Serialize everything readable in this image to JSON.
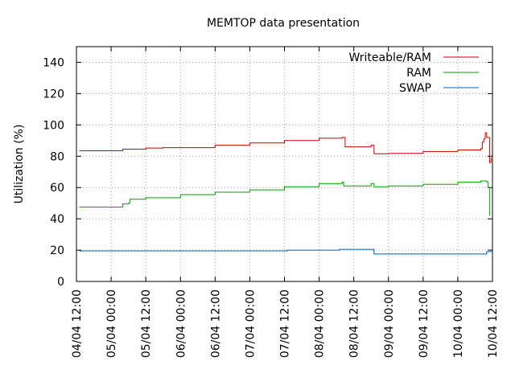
{
  "chart_data": {
    "type": "line",
    "title": "MEMTOP data presentation",
    "xlabel": "",
    "ylabel": "Utilization (%)",
    "ylim": [
      0,
      150
    ],
    "y_ticks": [
      0,
      20,
      40,
      60,
      80,
      100,
      120,
      140
    ],
    "x_ticks": [
      "04/04 12:00",
      "05/04 00:00",
      "05/04 12:00",
      "06/04 00:00",
      "06/04 12:00",
      "07/04 00:00",
      "07/04 12:00",
      "08/04 00:00",
      "08/04 12:00",
      "09/04 00:00",
      "09/04 12:00",
      "10/04 00:00",
      "10/04 12:00"
    ],
    "grid": true,
    "legend_position": "top-right",
    "colors": {
      "Writeable/RAM": "#cc0000",
      "RAM": "#00a000",
      "SWAP": "#0060c0"
    },
    "series": [
      {
        "name": "Writeable/RAM",
        "points": [
          [
            "04/04 13:00",
            83.5
          ],
          [
            "04/04 14:00",
            83.5
          ],
          [
            "05/04 04:00",
            84.5
          ],
          [
            "05/04 12:00",
            85.2
          ],
          [
            "05/04 18:00",
            85.5
          ],
          [
            "06/04 12:00",
            87.0
          ],
          [
            "07/04 00:00",
            88.5
          ],
          [
            "07/04 12:00",
            90.0
          ],
          [
            "08/04 00:00",
            91.5
          ],
          [
            "08/04 08:00",
            92.0
          ],
          [
            "08/04 09:00",
            86.0
          ],
          [
            "08/04 18:00",
            87.0
          ],
          [
            "08/04 19:00",
            81.5
          ],
          [
            "09/04 00:00",
            81.8
          ],
          [
            "09/04 12:00",
            83.0
          ],
          [
            "10/04 00:00",
            84.0
          ],
          [
            "10/04 08:00",
            84.8
          ],
          [
            "10/04 08:30",
            89.0
          ],
          [
            "10/04 09:00",
            91.0
          ],
          [
            "10/04 09:30",
            95.0
          ],
          [
            "10/04 10:00",
            92.0
          ],
          [
            "10/04 11:00",
            76.0
          ],
          [
            "10/04 11:30",
            79.0
          ]
        ]
      },
      {
        "name": "RAM",
        "points": [
          [
            "04/04 13:00",
            47.5
          ],
          [
            "04/04 14:00",
            47.5
          ],
          [
            "05/04 04:00",
            49.5
          ],
          [
            "05/04 06:00",
            50.0
          ],
          [
            "05/04 06:30",
            52.5
          ],
          [
            "05/04 12:00",
            53.5
          ],
          [
            "06/04 00:00",
            55.5
          ],
          [
            "06/04 12:00",
            57.0
          ],
          [
            "07/04 00:00",
            58.5
          ],
          [
            "07/04 12:00",
            60.5
          ],
          [
            "08/04 00:00",
            62.5
          ],
          [
            "08/04 08:00",
            63.5
          ],
          [
            "08/04 08:30",
            61.0
          ],
          [
            "08/04 18:00",
            62.5
          ],
          [
            "08/04 19:00",
            60.5
          ],
          [
            "09/04 00:00",
            61.0
          ],
          [
            "09/04 12:00",
            62.0
          ],
          [
            "10/04 00:00",
            63.5
          ],
          [
            "10/04 08:00",
            64.2
          ],
          [
            "10/04 10:00",
            63.5
          ],
          [
            "10/04 10:30",
            60.0
          ],
          [
            "10/04 11:00",
            42.0
          ]
        ]
      },
      {
        "name": "SWAP",
        "points": [
          [
            "04/04 13:00",
            19.5
          ],
          [
            "05/04 12:00",
            19.5
          ],
          [
            "06/04 12:00",
            19.5
          ],
          [
            "07/04 12:00",
            19.5
          ],
          [
            "07/04 13:00",
            20.0
          ],
          [
            "08/04 00:00",
            20.0
          ],
          [
            "08/04 06:00",
            20.0
          ],
          [
            "08/04 07:00",
            20.5
          ],
          [
            "08/04 18:00",
            20.5
          ],
          [
            "08/04 19:00",
            17.5
          ],
          [
            "09/04 12:00",
            17.5
          ],
          [
            "10/04 00:00",
            17.5
          ],
          [
            "10/04 08:00",
            17.5
          ],
          [
            "10/04 10:00",
            19.0
          ],
          [
            "10/04 11:30",
            20.0
          ]
        ]
      }
    ]
  }
}
